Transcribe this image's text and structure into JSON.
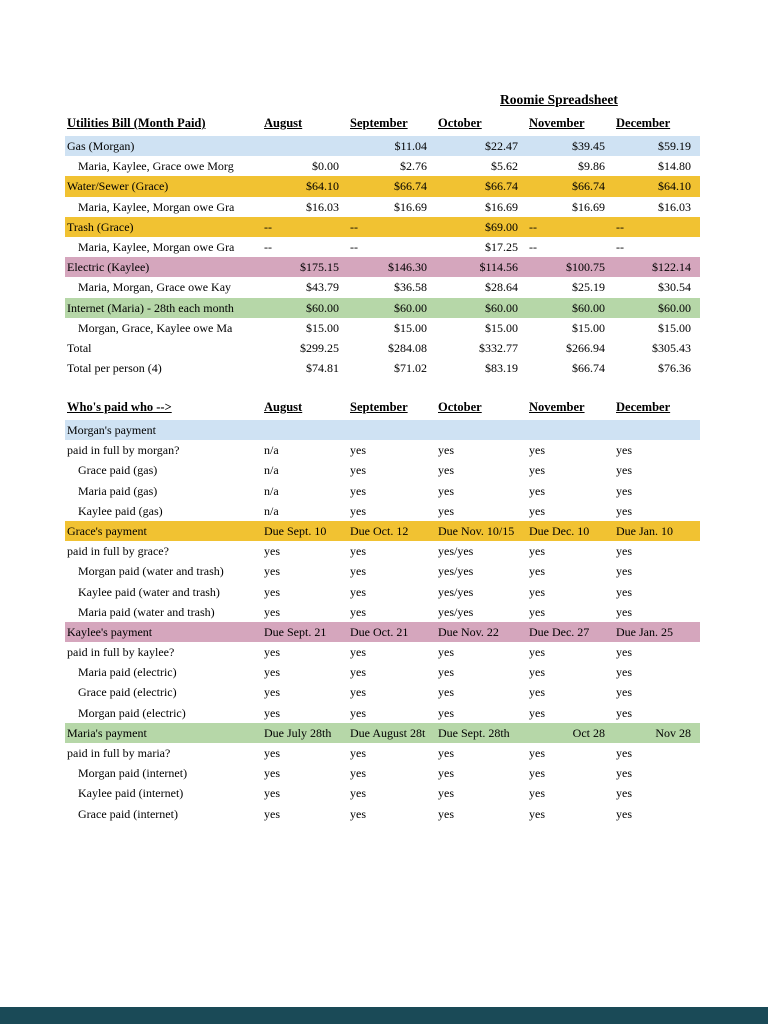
{
  "page": {
    "title": "Roomie Spreadsheet"
  },
  "colors": {
    "blue": "#cfe2f3",
    "gold": "#f1c232",
    "pink": "#d5a6bd",
    "green": "#b6d7a8",
    "footer_bar": "#1a4a57"
  },
  "utilities_table": {
    "money": true,
    "header": {
      "label": "Utilities Bill (Month Paid)",
      "months": [
        "August",
        "September",
        "October",
        "November",
        "December"
      ]
    },
    "rows": [
      {
        "label": "Gas (Morgan)",
        "type": "category",
        "color": "blue",
        "values": [
          "",
          "$11.04",
          "$22.47",
          "$39.45",
          "$59.19"
        ]
      },
      {
        "label": "Maria, Kaylee, Grace owe Morg",
        "type": "sub",
        "values": [
          "$0.00",
          "$2.76",
          "$5.62",
          "$9.86",
          "$14.80"
        ]
      },
      {
        "label": "Water/Sewer (Grace)",
        "type": "category",
        "color": "gold",
        "values": [
          "$64.10",
          "$66.74",
          "$66.74",
          "$66.74",
          "$64.10"
        ]
      },
      {
        "label": "Maria, Kaylee, Morgan owe Gra",
        "type": "sub",
        "values": [
          "$16.03",
          "$16.69",
          "$16.69",
          "$16.69",
          "$16.03"
        ]
      },
      {
        "label": "Trash (Grace)",
        "type": "category",
        "color": "gold",
        "values": [
          "--",
          "--",
          "$69.00",
          "--",
          "--"
        ]
      },
      {
        "label": "Maria, Kaylee, Morgan owe Gra",
        "type": "sub",
        "values": [
          "--",
          "--",
          "$17.25",
          "--",
          "--"
        ]
      },
      {
        "label": "Electric (Kaylee)",
        "type": "category",
        "color": "pink",
        "values": [
          "$175.15",
          "$146.30",
          "$114.56",
          "$100.75",
          "$122.14"
        ]
      },
      {
        "label": "Maria, Morgan, Grace owe Kay",
        "type": "sub",
        "values": [
          "$43.79",
          "$36.58",
          "$28.64",
          "$25.19",
          "$30.54"
        ]
      },
      {
        "label": "Internet (Maria) - 28th each month",
        "type": "category",
        "color": "green",
        "values": [
          "$60.00",
          "$60.00",
          "$60.00",
          "$60.00",
          "$60.00"
        ]
      },
      {
        "label": "Morgan, Grace, Kaylee owe Ma",
        "type": "sub",
        "values": [
          "$15.00",
          "$15.00",
          "$15.00",
          "$15.00",
          "$15.00"
        ]
      },
      {
        "label": "Total",
        "type": "total",
        "values": [
          "$299.25",
          "$284.08",
          "$332.77",
          "$266.94",
          "$305.43"
        ]
      },
      {
        "label": "Total per person (4)",
        "type": "total",
        "values": [
          "$74.81",
          "$71.02",
          "$83.19",
          "$66.74",
          "$76.36"
        ]
      }
    ]
  },
  "payments_table": {
    "money": false,
    "header": {
      "label": "Who's paid who -->",
      "months": [
        "August",
        "September",
        "October",
        "November",
        "December"
      ]
    },
    "rows": [
      {
        "label": "Morgan's payment",
        "type": "category",
        "color": "blue",
        "values": [
          "",
          "",
          "",
          "",
          ""
        ]
      },
      {
        "label": "paid in full by morgan?",
        "type": "plain",
        "values": [
          "n/a",
          "yes",
          "yes",
          "yes",
          "yes"
        ]
      },
      {
        "label": "Grace paid (gas)",
        "type": "sub",
        "values": [
          "n/a",
          "yes",
          "yes",
          "yes",
          "yes"
        ]
      },
      {
        "label": "Maria paid (gas)",
        "type": "sub",
        "values": [
          "n/a",
          "yes",
          "yes",
          "yes",
          "yes"
        ]
      },
      {
        "label": "Kaylee paid (gas)",
        "type": "sub",
        "values": [
          "n/a",
          "yes",
          "yes",
          "yes",
          "yes"
        ]
      },
      {
        "label": "Grace's payment",
        "type": "category",
        "color": "gold",
        "values": [
          "Due Sept. 10",
          "Due Oct. 12",
          "Due Nov. 10/15",
          "Due Dec. 10",
          "Due Jan. 10"
        ]
      },
      {
        "label": "paid in full by grace?",
        "type": "plain",
        "values": [
          "yes",
          "yes",
          "yes/yes",
          "yes",
          "yes"
        ]
      },
      {
        "label": "Morgan paid (water and trash)",
        "type": "sub",
        "values": [
          "yes",
          "yes",
          "yes/yes",
          "yes",
          "yes"
        ]
      },
      {
        "label": "Kaylee paid (water and trash)",
        "type": "sub",
        "values": [
          "yes",
          "yes",
          "yes/yes",
          "yes",
          "yes"
        ]
      },
      {
        "label": "Maria paid (water and trash)",
        "type": "sub",
        "values": [
          "yes",
          "yes",
          "yes/yes",
          "yes",
          "yes"
        ]
      },
      {
        "label": "Kaylee's payment",
        "type": "category",
        "color": "pink",
        "values": [
          "Due Sept. 21",
          "Due Oct. 21",
          "Due Nov. 22",
          "Due Dec. 27",
          "Due Jan. 25"
        ]
      },
      {
        "label": "paid in full by kaylee?",
        "type": "plain",
        "values": [
          "yes",
          "yes",
          "yes",
          "yes",
          "yes"
        ]
      },
      {
        "label": "Maria paid (electric)",
        "type": "sub",
        "values": [
          "yes",
          "yes",
          "yes",
          "yes",
          "yes"
        ]
      },
      {
        "label": "Grace paid (electric)",
        "type": "sub",
        "values": [
          "yes",
          "yes",
          "yes",
          "yes",
          "yes"
        ]
      },
      {
        "label": "Morgan paid (electric)",
        "type": "sub",
        "values": [
          "yes",
          "yes",
          "yes",
          "yes",
          "yes"
        ]
      },
      {
        "label": "Maria's payment",
        "type": "category",
        "color": "green",
        "values": [
          "Due July 28th",
          "Due August 28t",
          "Due Sept. 28th",
          "Oct 28",
          "Nov 28"
        ],
        "aligns": [
          "l",
          "l",
          "l",
          "r",
          "r"
        ]
      },
      {
        "label": "paid in full by maria?",
        "type": "plain",
        "values": [
          "yes",
          "yes",
          "yes",
          "yes",
          "yes"
        ]
      },
      {
        "label": "Morgan paid (internet)",
        "type": "sub",
        "values": [
          "yes",
          "yes",
          "yes",
          "yes",
          "yes"
        ]
      },
      {
        "label": "Kaylee paid (internet)",
        "type": "sub",
        "values": [
          "yes",
          "yes",
          "yes",
          "yes",
          "yes"
        ]
      },
      {
        "label": "Grace paid (internet)",
        "type": "sub",
        "values": [
          "yes",
          "yes",
          "yes",
          "yes",
          "yes"
        ]
      }
    ]
  }
}
